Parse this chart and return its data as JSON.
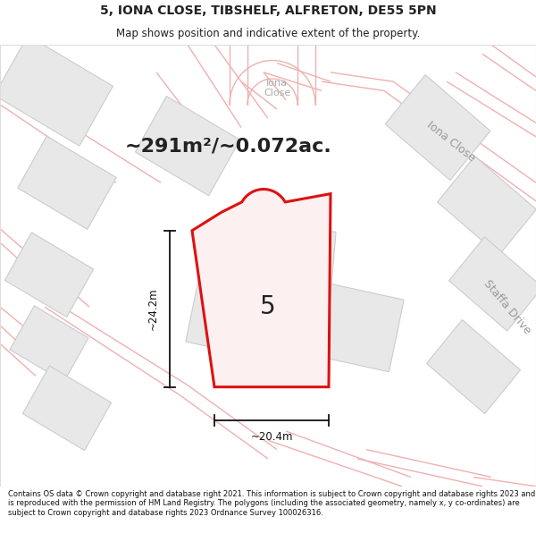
{
  "title_line1": "5, IONA CLOSE, TIBSHELF, ALFRETON, DE55 5PN",
  "title_line2": "Map shows position and indicative extent of the property.",
  "area_text": "~291m²/~0.072ac.",
  "width_text": "~20.4m",
  "height_text": "~24.2m",
  "label_text": "5",
  "label_iona_close": "Iona Close",
  "label_staffa_drive": "Staffa Drive",
  "label_iona_road": "Iona\nClose",
  "footer_text": "Contains OS data © Crown copyright and database right 2021. This information is subject to Crown copyright and database rights 2023 and is reproduced with the permission of HM Land Registry. The polygons (including the associated geometry, namely x, y co-ordinates) are subject to Crown copyright and database rights 2023 Ordnance Survey 100026316.",
  "bg_color": "#ffffff",
  "map_bg": "#f7f6f5",
  "plot_fill": "#fdf0f0",
  "plot_stroke": "#dd1111",
  "building_fill": "#e8e8e8",
  "building_stroke": "#cccccc",
  "road_fill": "#fde8e8",
  "road_stroke": "#f0b0b0",
  "dim_line_color": "#111111",
  "text_color": "#222222",
  "road_label_color": "#aaaaaa",
  "footer_color": "#111111",
  "title_fontsize": 10,
  "subtitle_fontsize": 8.5,
  "area_fontsize": 16,
  "dim_fontsize": 8.5,
  "label_fontsize": 20,
  "road_label_fontsize": 9,
  "footer_fontsize": 6.0
}
